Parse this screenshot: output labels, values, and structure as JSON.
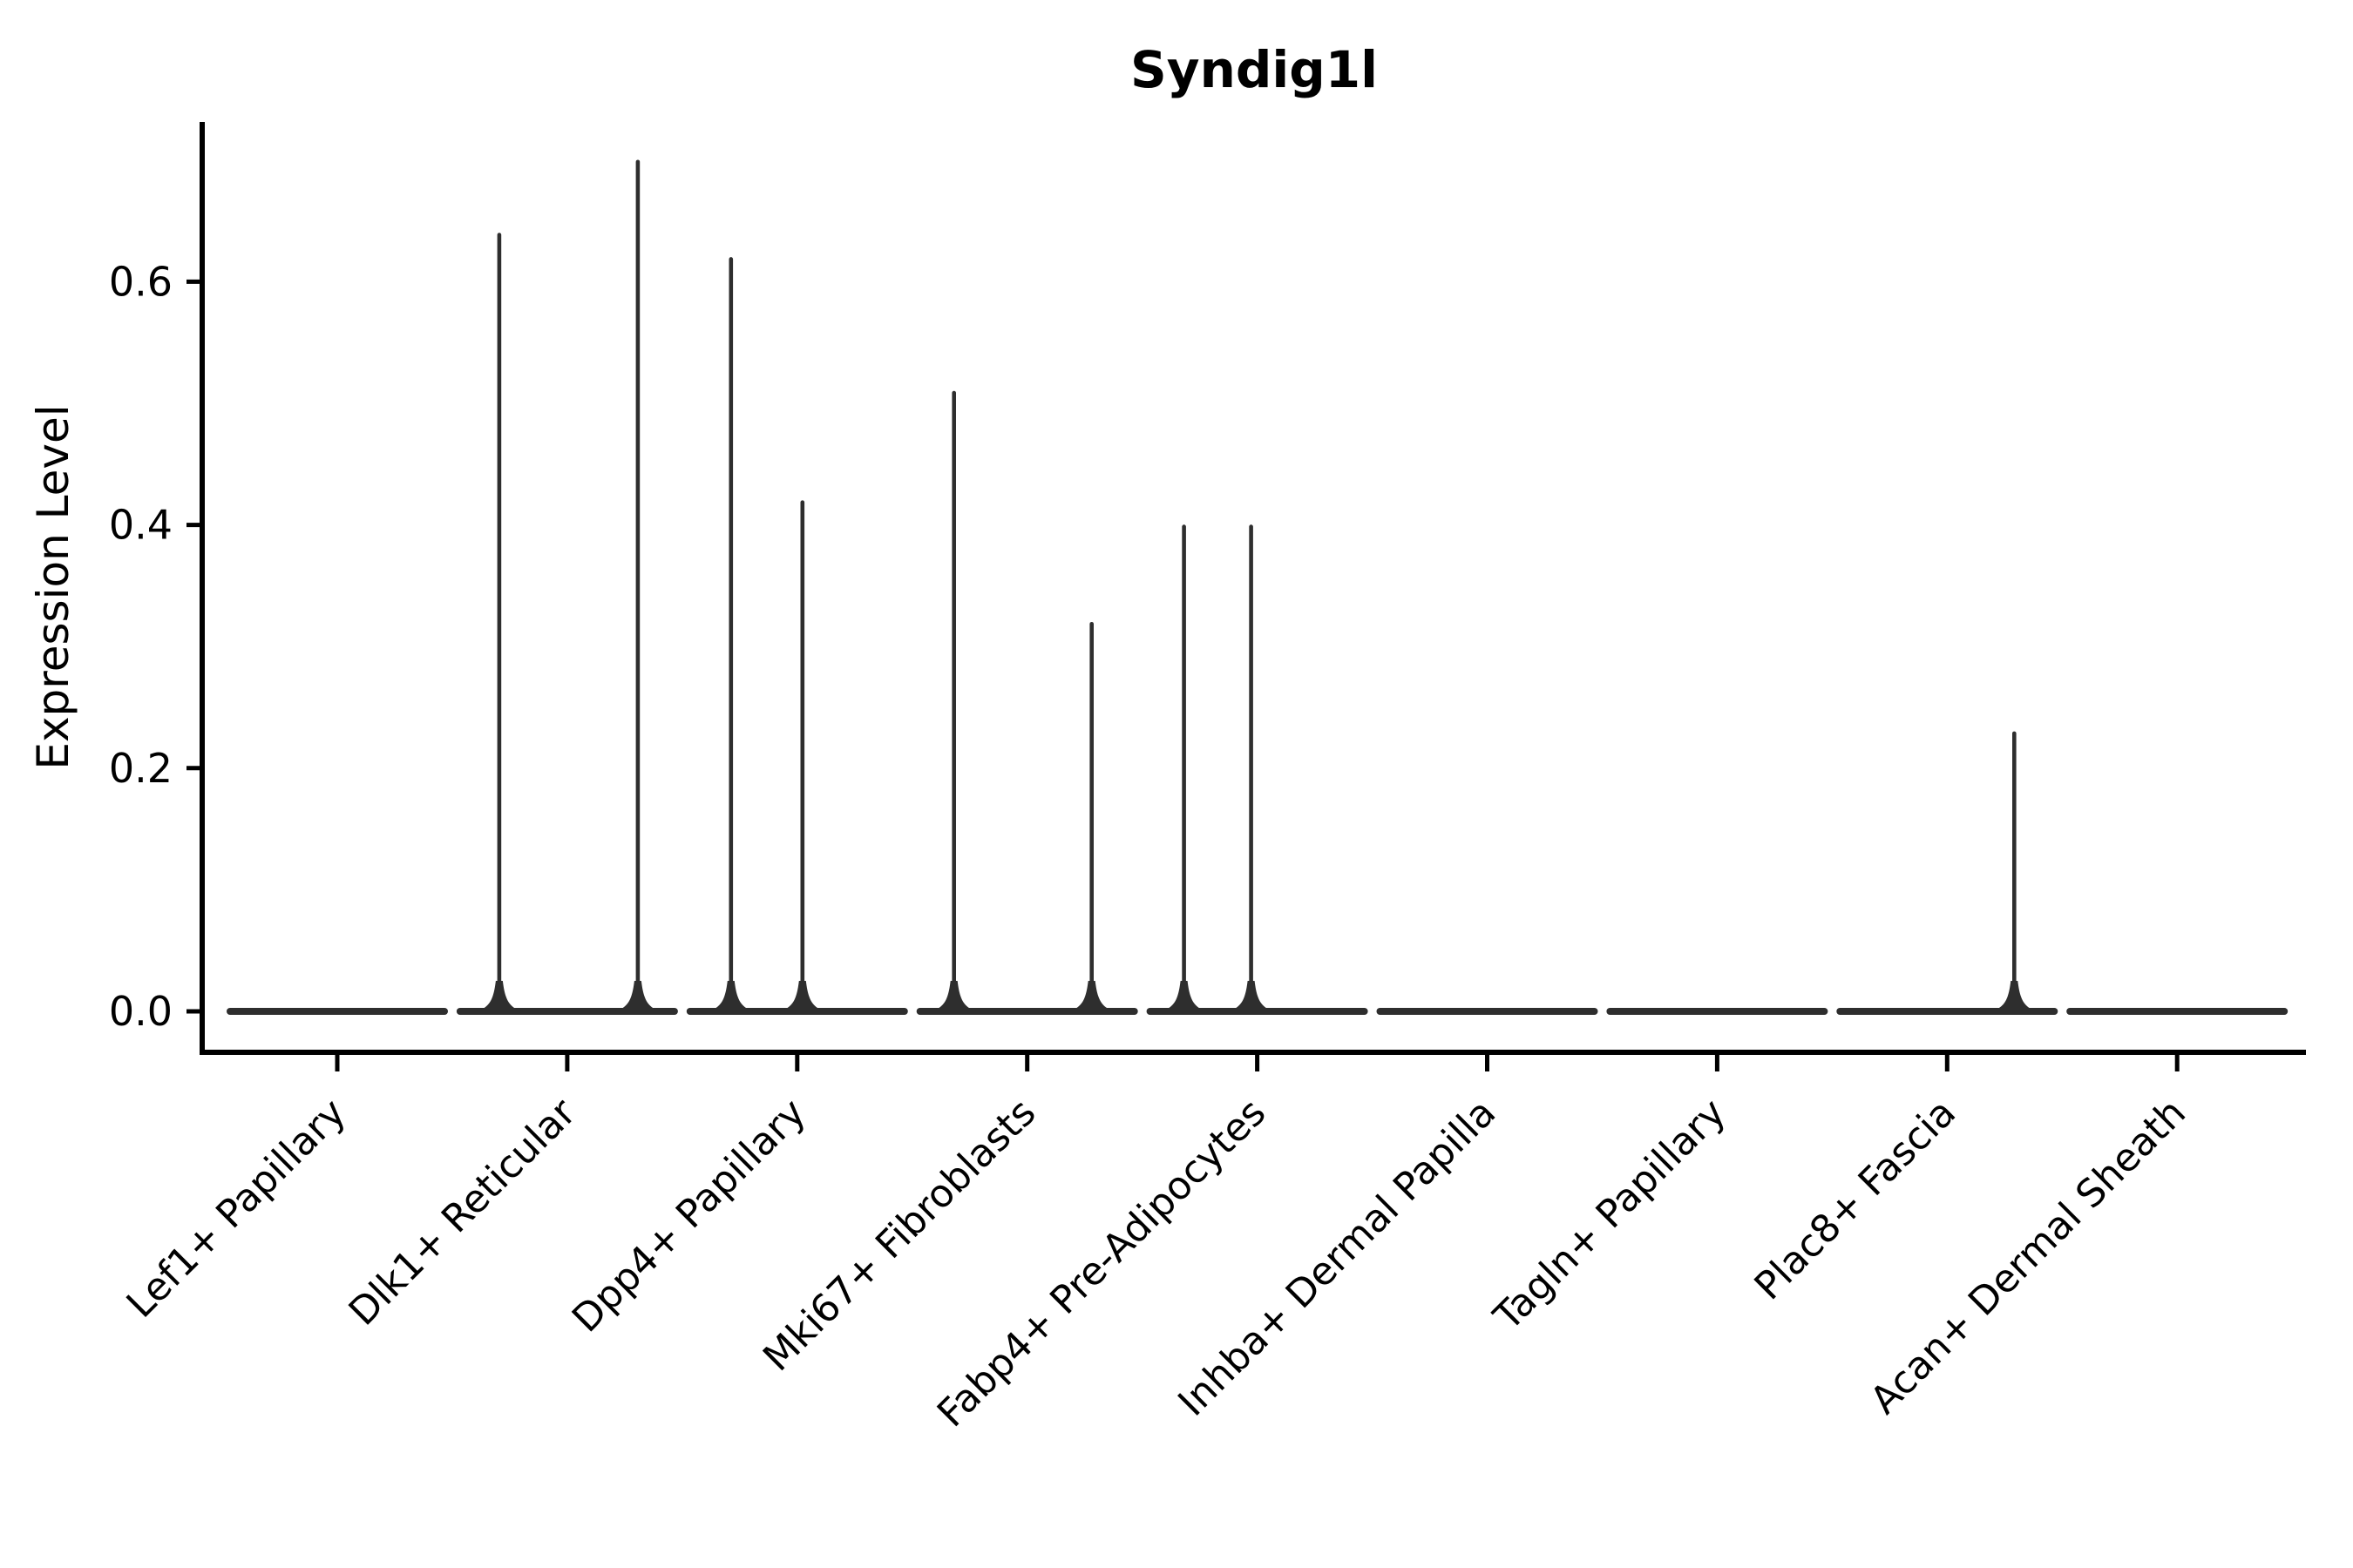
{
  "chart_data": {
    "type": "violin",
    "title": "Syndig1l",
    "ylabel": "Expression Level",
    "xlabel": "",
    "grid": false,
    "legend": null,
    "ylim": [
      -0.034,
      0.731
    ],
    "ytick_values": [
      0.0,
      0.2,
      0.4,
      0.6
    ],
    "ytick_labels": [
      "0.0",
      "0.2",
      "0.4",
      "0.6"
    ],
    "categories": [
      "Lef1+ Papillary",
      "Dlk1+ Reticular",
      "Dpp4+ Papillary",
      "Mki67+ Fibroblasts",
      "Fabp4+ Pre-Adipocytes",
      "Inhba+ Dermal Papilla",
      "Tagln+ Papillary",
      "Plac8+ Fascia",
      "Acan+ Dermal Sheath"
    ],
    "violins": [
      {
        "category": "Lef1+ Papillary",
        "baseline_at_zero": true,
        "spikes": []
      },
      {
        "category": "Dlk1+ Reticular",
        "baseline_at_zero": true,
        "spikes": [
          {
            "dx": -78,
            "max": 0.64
          },
          {
            "dx": 81,
            "max": 0.7
          }
        ]
      },
      {
        "category": "Dpp4+ Papillary",
        "baseline_at_zero": true,
        "spikes": [
          {
            "dx": -76,
            "max": 0.62
          },
          {
            "dx": 6,
            "max": 0.42
          }
        ]
      },
      {
        "category": "Mki67+ Fibroblasts",
        "baseline_at_zero": true,
        "spikes": [
          {
            "dx": -84,
            "max": 0.51
          },
          {
            "dx": 74,
            "max": 0.32
          }
        ]
      },
      {
        "category": "Fabp4+ Pre-Adipocytes",
        "baseline_at_zero": true,
        "spikes": [
          {
            "dx": -84,
            "max": 0.4
          },
          {
            "dx": -7,
            "max": 0.4
          }
        ]
      },
      {
        "category": "Inhba+ Dermal Papilla",
        "baseline_at_zero": true,
        "spikes": []
      },
      {
        "category": "Tagln+ Papillary",
        "baseline_at_zero": true,
        "spikes": []
      },
      {
        "category": "Plac8+ Fascia",
        "baseline_at_zero": true,
        "spikes": [
          {
            "dx": 77,
            "max": 0.23
          }
        ]
      },
      {
        "category": "Acan+ Dermal Sheath",
        "baseline_at_zero": true,
        "spikes": []
      }
    ],
    "colors": {
      "violin": "#2e2e2e",
      "axis": "#000000",
      "background": "#ffffff"
    }
  }
}
